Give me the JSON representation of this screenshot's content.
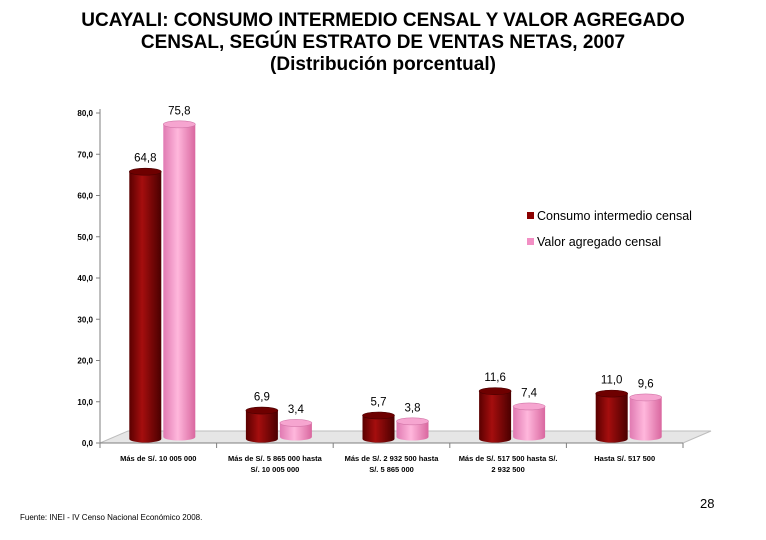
{
  "title_lines": [
    "UCAYALI: CONSUMO INTERMEDIO CENSAL Y VALOR AGREGADO",
    "CENSAL, SEGÚN ESTRATO DE VENTAS NETAS, 2007",
    "(Distribución porcentual)"
  ],
  "page_number": "28",
  "source_note": "Fuente: INEI - IV Censo Nacional Económico 2008.",
  "chart_data": {
    "type": "bar",
    "title": "UCAYALI: CONSUMO INTERMEDIO CENSAL Y VALOR AGREGADO CENSAL, SEGÚN ESTRATO DE VENTAS NETAS, 2007 (Distribución porcentual)",
    "categories": [
      [
        "Más de S/. 10 005 000"
      ],
      [
        "Más de S/. 5 865 000  hasta",
        "S/. 10 005 000"
      ],
      [
        "Más de S/. 2 932 500  hasta",
        "S/. 5 865 000"
      ],
      [
        "Más de S/. 517 500  hasta S/.",
        "2 932 500"
      ],
      [
        "Hasta S/. 517 500"
      ]
    ],
    "series": [
      {
        "name": "Consumo intermedio censal",
        "values": [
          64.8,
          6.9,
          5.7,
          11.6,
          11.0
        ],
        "labels": [
          "64,8",
          "6,9",
          "5,7",
          "11,6",
          "11,0"
        ],
        "color": "#8b0000"
      },
      {
        "name": "Valor agregado censal",
        "values": [
          75.8,
          3.4,
          3.8,
          7.4,
          9.6
        ],
        "labels": [
          "75,8",
          "3,4",
          "3,8",
          "7,4",
          "9,6"
        ],
        "color": "#f28fc4"
      }
    ],
    "yticks": [
      "0,0",
      "10,0",
      "20,0",
      "30,0",
      "40,0",
      "50,0",
      "60,0",
      "70,0",
      "80,0"
    ],
    "ylim": [
      0,
      80
    ],
    "xlabel": "",
    "ylabel": "",
    "legend_position": "right"
  }
}
